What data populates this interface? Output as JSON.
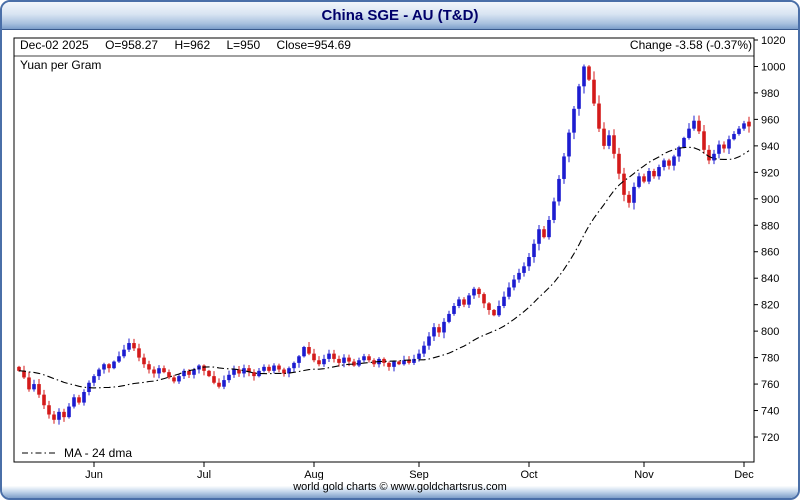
{
  "window": {
    "title": "China SGE - AU (T&D)"
  },
  "header": {
    "date": "Dec-02 2025",
    "open": "O=958.27",
    "high": "H=962",
    "low": "L=950",
    "close": "Close=954.69",
    "change": "Change -3.58 (-0.37%)",
    "units": "Yuan per Gram"
  },
  "legend": {
    "ma": "MA - 24 dma"
  },
  "footer": {
    "credit": "world gold charts © www.goldchartsrus.com"
  },
  "chart_data": {
    "type": "candlestick",
    "title": "China SGE - AU (T&D)",
    "ylabel": "Yuan per Gram",
    "ylim": [
      720,
      1020
    ],
    "ytick_step": 20,
    "yticks": [
      1020,
      1000,
      980,
      960,
      940,
      920,
      900,
      880,
      860,
      840,
      820,
      800,
      780,
      760,
      740,
      720
    ],
    "x_month_labels": [
      "Jun",
      "Jul",
      "Aug",
      "Sep",
      "Oct",
      "Nov",
      "Dec"
    ],
    "month_start_indices": [
      15,
      37,
      59,
      80,
      102,
      125,
      145
    ],
    "first_open": 773,
    "closes": [
      770,
      765,
      756,
      760,
      752,
      744,
      737,
      733,
      739,
      735,
      743,
      750,
      746,
      754,
      761,
      766,
      771,
      775,
      772,
      777,
      781,
      786,
      791,
      787,
      780,
      775,
      771,
      768,
      772,
      769,
      765,
      762,
      766,
      770,
      767,
      771,
      774,
      770,
      766,
      761,
      758,
      763,
      767,
      771,
      768,
      772,
      769,
      766,
      770,
      773,
      770,
      774,
      771,
      768,
      772,
      776,
      781,
      788,
      783,
      778,
      775,
      779,
      783,
      779,
      776,
      780,
      777,
      774,
      778,
      781,
      778,
      775,
      779,
      776,
      773,
      777,
      775,
      778,
      776,
      779,
      783,
      789,
      796,
      803,
      799,
      807,
      813,
      819,
      824,
      820,
      827,
      832,
      828,
      821,
      816,
      812,
      819,
      826,
      833,
      839,
      844,
      849,
      856,
      866,
      877,
      871,
      884,
      898,
      915,
      932,
      950,
      968,
      985,
      1000,
      990,
      972,
      953,
      940,
      948,
      934,
      919,
      903,
      897,
      909,
      917,
      913,
      921,
      917,
      924,
      929,
      925,
      932,
      939,
      946,
      953,
      959,
      951,
      937,
      929,
      934,
      941,
      938,
      945,
      949,
      953,
      957,
      954.69
    ],
    "last_candle": {
      "open": 958.27,
      "high": 962,
      "low": 950,
      "close": 954.69
    },
    "ma_window": 24,
    "legend_label": "MA - 24 dma",
    "grid": false,
    "colors": {
      "up": "#1c1cd0",
      "down": "#d41a1a",
      "ma": "#000000"
    }
  }
}
